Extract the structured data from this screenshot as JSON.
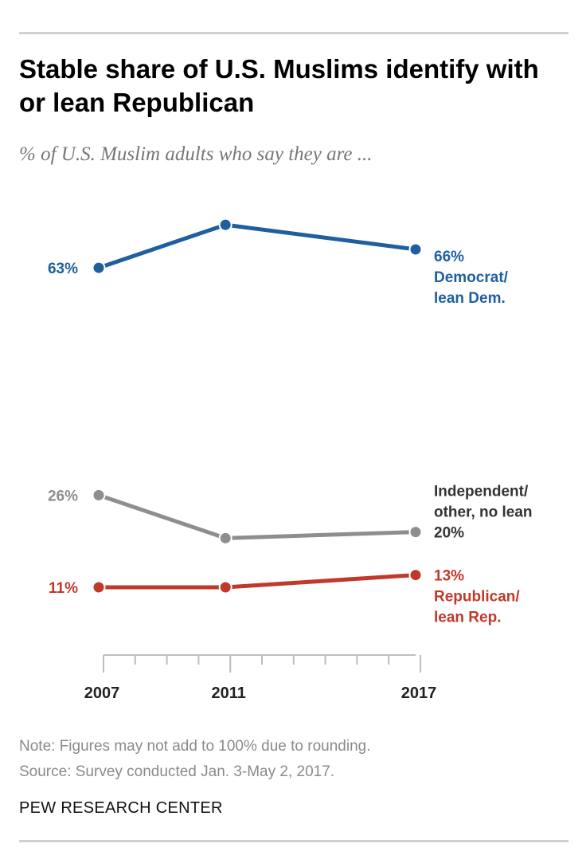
{
  "header": {
    "title": "Stable share of U.S. Muslims identify with or lean Republican",
    "subtitle": "% of U.S. Muslim adults who say they are ..."
  },
  "footer": {
    "note": "Note: Figures may not add to 100% due to rounding.",
    "source": "Source: Survey conducted Jan. 3-May 2, 2017.",
    "brand": "PEW RESEARCH CENTER"
  },
  "chart_data": {
    "type": "line",
    "title": "Stable share of U.S. Muslims identify with or lean Republican",
    "subtitle": "% of U.S. Muslim adults who say they are ...",
    "x": [
      2007,
      2011,
      2017
    ],
    "x_tick_labels": [
      "2007",
      "2011",
      "2017"
    ],
    "grid": false,
    "series": [
      {
        "name": "Democrat/ lean Dem.",
        "label_lines": [
          "Democrat/",
          "lean Dem."
        ],
        "values": [
          63,
          70,
          66
        ],
        "start_label": "63%",
        "end_label": "66%",
        "color": "#1f5f9e"
      },
      {
        "name": "Independent/ other, no lean",
        "label_lines": [
          "Independent/",
          "other, no lean"
        ],
        "values": [
          26,
          19,
          20
        ],
        "start_label": "26%",
        "end_label": "20%",
        "color": "#8e8e8e"
      },
      {
        "name": "Republican/ lean Rep.",
        "label_lines": [
          "Republican/",
          "lean Rep."
        ],
        "values": [
          11,
          11,
          13
        ],
        "start_label": "11%",
        "end_label": "13%",
        "color": "#c0392b"
      }
    ]
  }
}
